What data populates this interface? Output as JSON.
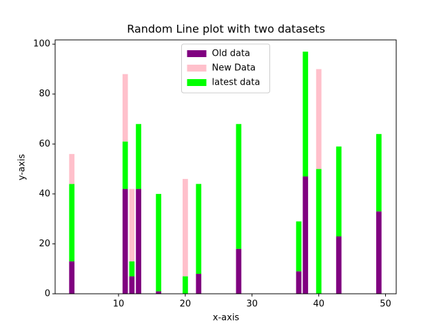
{
  "chart_data": {
    "type": "stacked_bar",
    "title": "Random Line plot with two datasets",
    "x_label": "x-axis",
    "y_label": "y-axis",
    "x": [
      3,
      11,
      12,
      13,
      16,
      20,
      22,
      28,
      37,
      38,
      40,
      43,
      49
    ],
    "series": [
      {
        "name": "Old data",
        "color": "#800080",
        "values": [
          13,
          42,
          7,
          42,
          1,
          0,
          8,
          18,
          9,
          47,
          0,
          23,
          33
        ]
      },
      {
        "name": "New Data",
        "color": "#ffc0cb",
        "values": [
          12,
          27,
          29,
          0,
          0,
          39,
          0,
          0,
          0,
          0,
          40,
          0,
          0
        ]
      },
      {
        "name": "latest data",
        "color": "#00ff00",
        "values": [
          31,
          19,
          6,
          26,
          39,
          7,
          36,
          50,
          20,
          50,
          50,
          36,
          31
        ]
      }
    ],
    "stack_order": [
      0,
      2,
      1
    ],
    "bar_width": 0.8,
    "xlim": [
      0.5,
      51.6
    ],
    "ylim": [
      0,
      101.7
    ],
    "xticks": [
      10,
      20,
      30,
      40,
      50
    ],
    "yticks": [
      0,
      20,
      40,
      60,
      80,
      100
    ],
    "legend": "upper center"
  }
}
